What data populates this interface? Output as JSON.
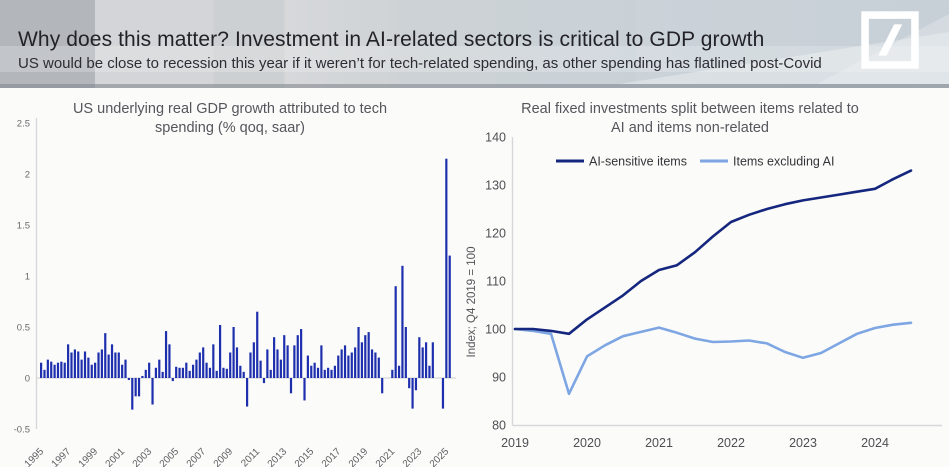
{
  "header": {
    "title": "Why does this matter? Investment in AI-related sectors is critical to GDP growth",
    "subtitle": "US would be close to recession this year if it weren’t for tech-related spending, as other spending has flatlined post-Covid",
    "logo": "deutsche-bank-slash-logo"
  },
  "colors": {
    "bar": "#1e2fae",
    "dark_line": "#15267e",
    "light_line": "#7da6e3",
    "axis_line": "#d7d7d9",
    "header_text": "#222228"
  },
  "chart_data": [
    {
      "type": "bar",
      "title": "US underlying real GDP growth attributed to tech spending (% qoq, saar)",
      "xlabel": "",
      "ylabel": "",
      "ylim": [
        -0.5,
        2.5
      ],
      "grid": false,
      "frequency": "quarterly",
      "x_start": "1995Q1",
      "x_tick_labels": [
        "1995",
        "1997",
        "1999",
        "2001",
        "2003",
        "2005",
        "2007",
        "2009",
        "2011",
        "2013",
        "2015",
        "2017",
        "2019",
        "2021",
        "2023",
        "2025"
      ],
      "y_ticks": [
        2.5,
        2,
        1.5,
        1,
        0.5,
        0,
        -0.5
      ],
      "bar_color": "#1e2fae",
      "values": [
        0.15,
        0.08,
        0.18,
        0.16,
        0.13,
        0.15,
        0.16,
        0.15,
        0.33,
        0.25,
        0.28,
        0.26,
        0.18,
        0.26,
        0.2,
        0.13,
        0.15,
        0.25,
        0.28,
        0.44,
        0.23,
        0.33,
        0.25,
        0.25,
        0.13,
        0.18,
        -0.02,
        -0.31,
        -0.18,
        -0.18,
        0.02,
        0.08,
        0.15,
        -0.26,
        0.1,
        0.18,
        0.06,
        0.46,
        0.33,
        -0.03,
        0.11,
        0.1,
        0.1,
        0.15,
        0.07,
        0.13,
        0.18,
        0.25,
        0.3,
        0.15,
        0.1,
        0.33,
        0.07,
        0.52,
        0.1,
        0.09,
        0.25,
        0.5,
        0.3,
        0.12,
        0.06,
        -0.28,
        0.25,
        0.35,
        0.65,
        0.17,
        -0.05,
        0.28,
        0.08,
        0.4,
        0.28,
        0.18,
        0.42,
        0.32,
        -0.15,
        0.32,
        0.42,
        0.48,
        -0.22,
        0.22,
        0.12,
        0.15,
        0.1,
        0.32,
        0.08,
        0.1,
        0.08,
        0.12,
        0.22,
        0.28,
        0.32,
        0.22,
        0.25,
        0.3,
        0.5,
        0.35,
        0.42,
        0.45,
        0.28,
        0.25,
        0.2,
        -0.15,
        0.0,
        0.0,
        0.08,
        0.9,
        0.12,
        1.1,
        0.5,
        -0.1,
        -0.3,
        -0.12,
        0.4,
        0.3,
        0.35,
        0.12,
        0.35,
        0.0,
        0.0,
        -0.3,
        2.15,
        1.2
      ]
    },
    {
      "type": "line",
      "title": "Real fixed investments split between items related to AI and items non-related",
      "xlabel": "",
      "ylabel": "Index; Q4 2019 = 100",
      "ylim": [
        80,
        140
      ],
      "grid": false,
      "legend_position": "top",
      "frequency": "quarterly",
      "x_start": "2019Q1",
      "x_tick_labels": [
        "2019",
        "2020",
        "2021",
        "2022",
        "2023",
        "2024"
      ],
      "y_ticks": [
        140,
        130,
        120,
        110,
        100,
        90,
        80
      ],
      "series": [
        {
          "name": "AI-sensitive items",
          "color": "#15267e",
          "values": [
            100,
            100,
            99.6,
            99.0,
            102.0,
            104.5,
            107.0,
            110.0,
            112.3,
            113.3,
            116.0,
            119.3,
            122.3,
            123.8,
            125.0,
            126.0,
            126.8,
            127.4,
            128.0,
            128.6,
            129.2,
            131.2,
            133.0
          ]
        },
        {
          "name": "Items excluding AI",
          "color": "#7da6e3",
          "values": [
            100,
            99.6,
            99.0,
            86.5,
            94.3,
            96.6,
            98.5,
            99.4,
            100.3,
            99.2,
            98.0,
            97.3,
            97.4,
            97.6,
            97.0,
            95.2,
            94.0,
            95.0,
            97.0,
            99.0,
            100.2,
            100.9,
            101.3
          ]
        }
      ]
    }
  ]
}
